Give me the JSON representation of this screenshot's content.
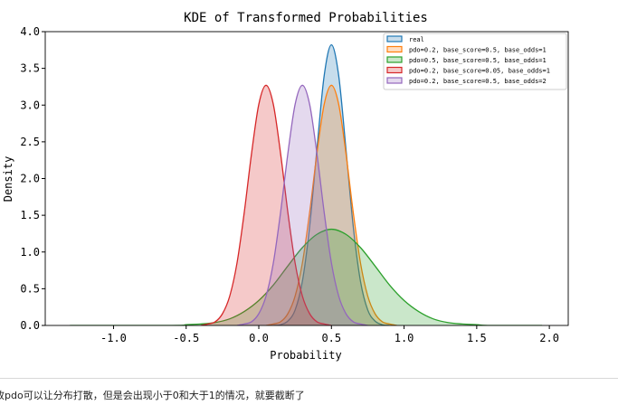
{
  "chart_data": {
    "type": "area",
    "title": "KDE of Transformed Probabilities",
    "xlabel": "Probability",
    "ylabel": "Density",
    "xlim": [
      -1.47,
      2.13
    ],
    "ylim": [
      0,
      4.0
    ],
    "xticks": [
      "-1.0",
      "-0.5",
      "0.0",
      "0.5",
      "1.0",
      "1.5",
      "2.0"
    ],
    "xtick_values": [
      -1.0,
      -0.5,
      0.0,
      0.5,
      1.0,
      1.5,
      2.0
    ],
    "yticks": [
      "0.0",
      "0.5",
      "1.0",
      "1.5",
      "2.0",
      "2.5",
      "3.0",
      "3.5",
      "4.0"
    ],
    "ytick_values": [
      0,
      0.5,
      1.0,
      1.5,
      2.0,
      2.5,
      3.0,
      3.5,
      4.0
    ],
    "grid": false,
    "legend_position": "top-right",
    "series": [
      {
        "name": "real",
        "color": "#1f77b4",
        "x": [
          0.1,
          0.15,
          0.2,
          0.25,
          0.3,
          0.35,
          0.4,
          0.45,
          0.5,
          0.55,
          0.6,
          0.65,
          0.7,
          0.75,
          0.8,
          0.85,
          0.9
        ],
        "y": [
          0,
          0.01,
          0.06,
          0.21,
          0.6,
          1.35,
          2.4,
          3.4,
          3.82,
          3.4,
          2.4,
          1.35,
          0.6,
          0.21,
          0.06,
          0.01,
          0
        ]
      },
      {
        "name": "pdo=0.2, base_score=0.5, base_odds=1",
        "color": "#ff7f0e",
        "x": [
          0.05,
          0.1,
          0.15,
          0.2,
          0.25,
          0.3,
          0.35,
          0.4,
          0.45,
          0.5,
          0.55,
          0.6,
          0.65,
          0.7,
          0.75,
          0.8,
          0.85,
          0.9,
          0.95
        ],
        "y": [
          0,
          0.02,
          0.05,
          0.16,
          0.4,
          0.85,
          1.54,
          2.34,
          3.01,
          3.27,
          3.01,
          2.34,
          1.54,
          0.85,
          0.4,
          0.16,
          0.05,
          0.02,
          0
        ]
      },
      {
        "name": "pdo=0.5, base_score=0.5, base_odds=1",
        "color": "#2ca02c",
        "x": [
          -1.3,
          -0.6,
          -0.5,
          -0.4,
          -0.3,
          -0.2,
          -0.1,
          0.0,
          0.1,
          0.2,
          0.3,
          0.4,
          0.5,
          0.6,
          0.7,
          0.8,
          0.9,
          1.0,
          1.1,
          1.2,
          1.3,
          1.4,
          1.5,
          1.6,
          1.95
        ],
        "y": [
          0,
          0,
          0.01,
          0.02,
          0.04,
          0.09,
          0.19,
          0.34,
          0.55,
          0.81,
          1.06,
          1.24,
          1.31,
          1.24,
          1.06,
          0.81,
          0.55,
          0.34,
          0.19,
          0.09,
          0.04,
          0.02,
          0.01,
          0,
          0
        ]
      },
      {
        "name": "pdo=0.2, base_score=0.05, base_odds=1",
        "color": "#d62728",
        "x": [
          -0.4,
          -0.35,
          -0.3,
          -0.25,
          -0.2,
          -0.15,
          -0.1,
          -0.05,
          0.0,
          0.05,
          0.1,
          0.15,
          0.2,
          0.25,
          0.3,
          0.35,
          0.4,
          0.45,
          0.5
        ],
        "y": [
          0,
          0.02,
          0.05,
          0.16,
          0.4,
          0.85,
          1.54,
          2.34,
          3.01,
          3.27,
          3.01,
          2.34,
          1.54,
          0.85,
          0.4,
          0.16,
          0.05,
          0.02,
          0
        ]
      },
      {
        "name": "pdo=0.2, base_score=0.5, base_odds=2",
        "color": "#9467bd",
        "x": [
          -0.15,
          -0.1,
          -0.05,
          0.0,
          0.05,
          0.1,
          0.15,
          0.2,
          0.25,
          0.3,
          0.35,
          0.4,
          0.45,
          0.5,
          0.55,
          0.6,
          0.65,
          0.7,
          0.75
        ],
        "y": [
          0,
          0.02,
          0.05,
          0.16,
          0.4,
          0.85,
          1.54,
          2.34,
          3.01,
          3.27,
          3.01,
          2.34,
          1.54,
          0.85,
          0.4,
          0.16,
          0.05,
          0.02,
          0
        ]
      }
    ]
  },
  "note": "改pdo可以让分布打散，但是会出现小于0和大于1的情况，就要截断了"
}
